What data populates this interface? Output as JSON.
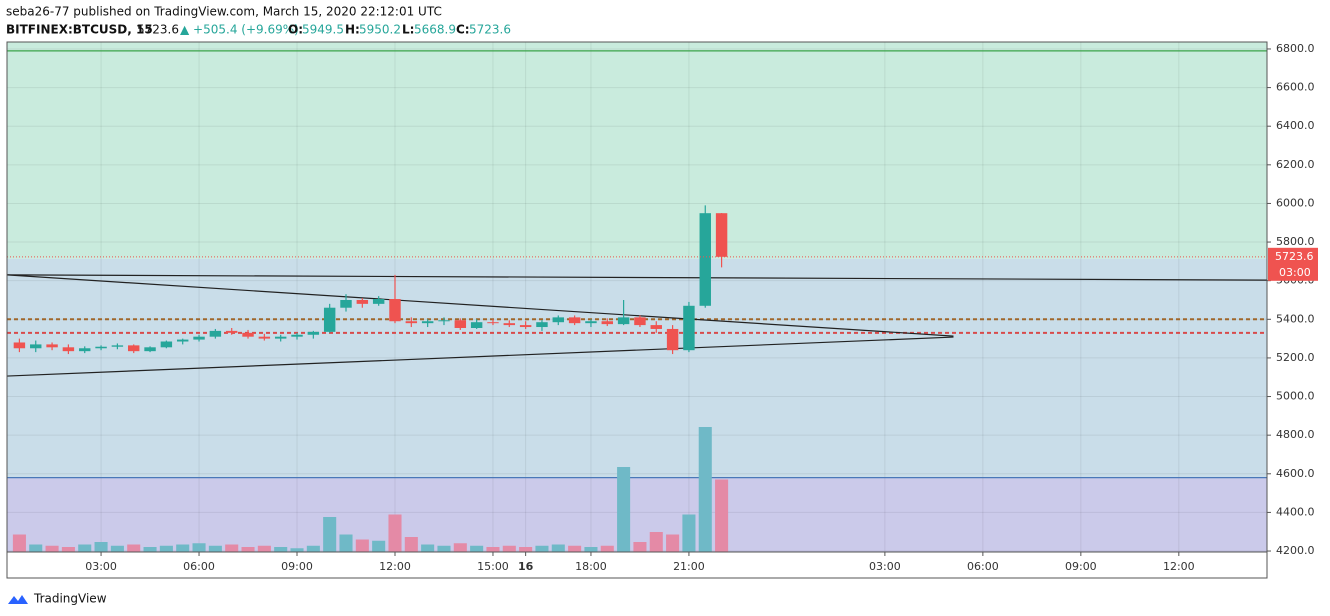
{
  "chart_data": {
    "type": "candlestick",
    "header": "seba26-77 published on TradingView.com, March 15, 2020 22:12:01 UTC",
    "symbol": "BITFINEX:BTCUSD, 15",
    "last": "5723.6",
    "change": "▲ +505.4 (+9.69%)",
    "ohlc_labels": [
      "O:",
      "H:",
      "L:",
      "C:"
    ],
    "ohlc_values": [
      "5949.5",
      "5950.2",
      "5668.9",
      "5723.6"
    ],
    "price_tag": "5723.6",
    "timer_tag": "03:00",
    "footer": "TradingView",
    "up_color": "#26a69a",
    "down_color": "#ef5350",
    "volume_up_color": "#6fb9c7",
    "volume_down_color": "#e48aa6",
    "xlim": [
      0.12,
      38.7
    ],
    "ylim": [
      4195,
      6836
    ],
    "xticks": [
      {
        "value": 3,
        "label": "03:00"
      },
      {
        "value": 6,
        "label": "06:00"
      },
      {
        "value": 9,
        "label": "09:00"
      },
      {
        "value": 12,
        "label": "12:00"
      },
      {
        "value": 15,
        "label": "15:00"
      },
      {
        "value": 18,
        "label": "18:00"
      },
      {
        "value": 21,
        "label": "21:00"
      },
      16,
      {
        "value": 27,
        "label": "03:00"
      },
      {
        "value": 30,
        "label": "06:00"
      },
      {
        "value": 33,
        "label": "09:00"
      },
      {
        "value": 36,
        "label": "12:00"
      }
    ],
    "yticks": [
      {
        "value": 4200,
        "label": "4200.0"
      },
      {
        "value": 4400,
        "label": "4400.0"
      },
      {
        "value": 4600,
        "label": "4600.0"
      },
      {
        "value": 4800,
        "label": "4800.0"
      },
      {
        "value": 5000,
        "label": "5000.0"
      },
      {
        "value": 5200,
        "label": "5200.0"
      },
      {
        "value": 5400,
        "label": "5400.0"
      },
      {
        "value": 5600,
        "label": "5600.0"
      },
      {
        "value": 5800,
        "label": "5800.0"
      },
      {
        "value": 6000,
        "label": "6000.0"
      },
      {
        "value": 6200,
        "label": "6200.0"
      },
      {
        "value": 6400,
        "label": "6400.0"
      },
      {
        "value": 6600,
        "label": "6600.0"
      },
      {
        "value": 6800,
        "label": "6800.0"
      }
    ],
    "grid": true,
    "zones": [
      {
        "from": 5713,
        "to": 6836,
        "color": "#c9ebdd"
      },
      {
        "from": 4580,
        "to": 5713,
        "color": "#c9dde9"
      },
      {
        "from": 4195,
        "to": 4580,
        "color": "#cbcaea"
      }
    ],
    "hlines": [
      {
        "price": 6790,
        "color": "#3aa34a",
        "dash": false
      },
      {
        "price": 4580,
        "color": "#4a78b8",
        "dash": false
      },
      {
        "price": 5400,
        "color": "#a0662a",
        "dash": true
      },
      {
        "price": 5330,
        "color": "#d84a4a",
        "dash": true
      }
    ],
    "trendlines": [
      [
        [
          0.12,
          5630
        ],
        [
          38.7,
          5603
        ]
      ],
      [
        [
          0.12,
          5630
        ],
        [
          29.1,
          5313
        ]
      ],
      [
        [
          0.12,
          5106
        ],
        [
          29.1,
          5308
        ]
      ]
    ],
    "x": [
      0.5,
      1,
      1.5,
      2,
      2.5,
      3,
      3.5,
      4,
      4.5,
      5,
      5.5,
      6,
      6.5,
      7,
      7.5,
      8,
      8.5,
      9,
      9.5,
      10,
      10.5,
      11,
      11.5,
      12,
      12.5,
      13,
      13.5,
      14,
      14.5,
      15,
      15.5,
      16,
      16.5,
      17,
      17.5,
      18,
      18.5,
      19,
      19.5,
      20,
      20.5,
      21,
      21.5,
      22
    ],
    "ohlc": [
      [
        5280,
        5300,
        5230,
        5250
      ],
      [
        5250,
        5290,
        5230,
        5270
      ],
      [
        5270,
        5280,
        5240,
        5255
      ],
      [
        5255,
        5270,
        5220,
        5235
      ],
      [
        5235,
        5260,
        5225,
        5250
      ],
      [
        5250,
        5265,
        5240,
        5258
      ],
      [
        5258,
        5275,
        5245,
        5265
      ],
      [
        5265,
        5270,
        5225,
        5235
      ],
      [
        5235,
        5260,
        5230,
        5255
      ],
      [
        5255,
        5290,
        5250,
        5285
      ],
      [
        5285,
        5300,
        5270,
        5295
      ],
      [
        5295,
        5320,
        5285,
        5310
      ],
      [
        5310,
        5350,
        5300,
        5340
      ],
      [
        5340,
        5355,
        5320,
        5330
      ],
      [
        5330,
        5345,
        5300,
        5310
      ],
      [
        5310,
        5325,
        5290,
        5300
      ],
      [
        5300,
        5320,
        5285,
        5310
      ],
      [
        5310,
        5330,
        5295,
        5320
      ],
      [
        5320,
        5340,
        5300,
        5335
      ],
      [
        5335,
        5480,
        5330,
        5460
      ],
      [
        5460,
        5530,
        5440,
        5500
      ],
      [
        5500,
        5510,
        5460,
        5480
      ],
      [
        5480,
        5520,
        5470,
        5505
      ],
      [
        5505,
        5630,
        5380,
        5390
      ],
      [
        5390,
        5410,
        5360,
        5380
      ],
      [
        5380,
        5400,
        5360,
        5390
      ],
      [
        5390,
        5410,
        5370,
        5395
      ],
      [
        5395,
        5405,
        5345,
        5355
      ],
      [
        5355,
        5400,
        5350,
        5385
      ],
      [
        5385,
        5400,
        5370,
        5380
      ],
      [
        5380,
        5395,
        5360,
        5370
      ],
      [
        5370,
        5390,
        5350,
        5360
      ],
      [
        5360,
        5395,
        5340,
        5385
      ],
      [
        5385,
        5420,
        5370,
        5410
      ],
      [
        5410,
        5420,
        5370,
        5380
      ],
      [
        5380,
        5400,
        5360,
        5390
      ],
      [
        5390,
        5405,
        5365,
        5375
      ],
      [
        5375,
        5500,
        5370,
        5410
      ],
      [
        5410,
        5420,
        5360,
        5370
      ],
      [
        5370,
        5390,
        5330,
        5350
      ],
      [
        5350,
        5370,
        5220,
        5240
      ],
      [
        5240,
        5490,
        5230,
        5470
      ],
      [
        5470,
        5990,
        5460,
        5949.5
      ],
      [
        5949.5,
        5950.2,
        5668.9,
        5723.6
      ]
    ],
    "volume": [
      14,
      6,
      5,
      4,
      6,
      8,
      5,
      6,
      4,
      5,
      6,
      7,
      5,
      6,
      4,
      5,
      4,
      3,
      5,
      28,
      14,
      10,
      9,
      30,
      12,
      6,
      5,
      7,
      5,
      4,
      5,
      4,
      5,
      6,
      5,
      4,
      5,
      68,
      8,
      16,
      14,
      30,
      100,
      58
    ]
  }
}
